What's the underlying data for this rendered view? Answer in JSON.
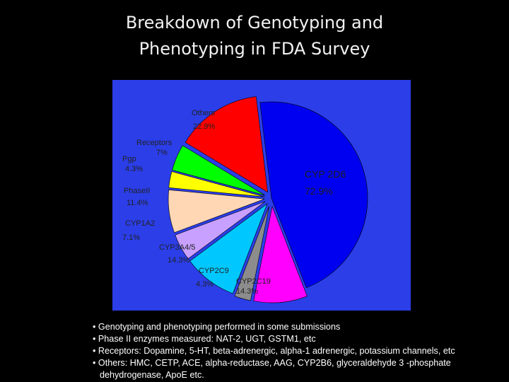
{
  "title_lines": [
    "Breakdown of Genotyping and",
    "Phenotyping in FDA Survey"
  ],
  "chart_data": {
    "type": "pie",
    "background": "#2b3ee8",
    "slices": [
      {
        "name": "CYP 2D6",
        "value_label": "72.9%",
        "value": 72.9,
        "color": "#0000f0"
      },
      {
        "name": "CYP2C19",
        "value_label": "14.3%",
        "value": 14.3,
        "color": "#ff00ff"
      },
      {
        "name": "CYP2C9",
        "value_label": "4.3%",
        "value": 4.3,
        "color": "#8c8c8c"
      },
      {
        "name": "CYP3A4/5",
        "value_label": "14.3%",
        "value": 14.3,
        "color": "#00c8ff"
      },
      {
        "name": "CYP1A2",
        "value_label": "7.1%",
        "value": 7.1,
        "color": "#c8a0ff"
      },
      {
        "name": "PhaseII",
        "value_label": "11.4%",
        "value": 11.4,
        "color": "#ffd7b4"
      },
      {
        "name": "Pgp",
        "value_label": "4.3%",
        "value": 4.3,
        "color": "#ffff00"
      },
      {
        "name": "Receptors",
        "value_label": "7%",
        "value": 7,
        "color": "#00ff00"
      },
      {
        "name": "Others",
        "value_label": "22.9%",
        "value": 22.9,
        "color": "#ff0000"
      }
    ]
  },
  "bullets": [
    {
      "text": "• Genotyping and phenotyping  performed in some submissions",
      "cont": ""
    },
    {
      "text": "• Phase II enzymes measured: NAT-2, UGT, GSTM1, etc",
      "cont": ""
    },
    {
      "text": "• Receptors: Dopamine, 5-HT, beta-adrenergic, alpha-1 adrenergic, potassium channels, etc",
      "cont": ""
    },
    {
      "text": "• Others: HMC, CETP, ACE, alpha-reductase, AAG, CYP2B6, glyceraldehyde 3 -phosphate",
      "cont": "dehydrogenase, ApoE etc."
    }
  ]
}
